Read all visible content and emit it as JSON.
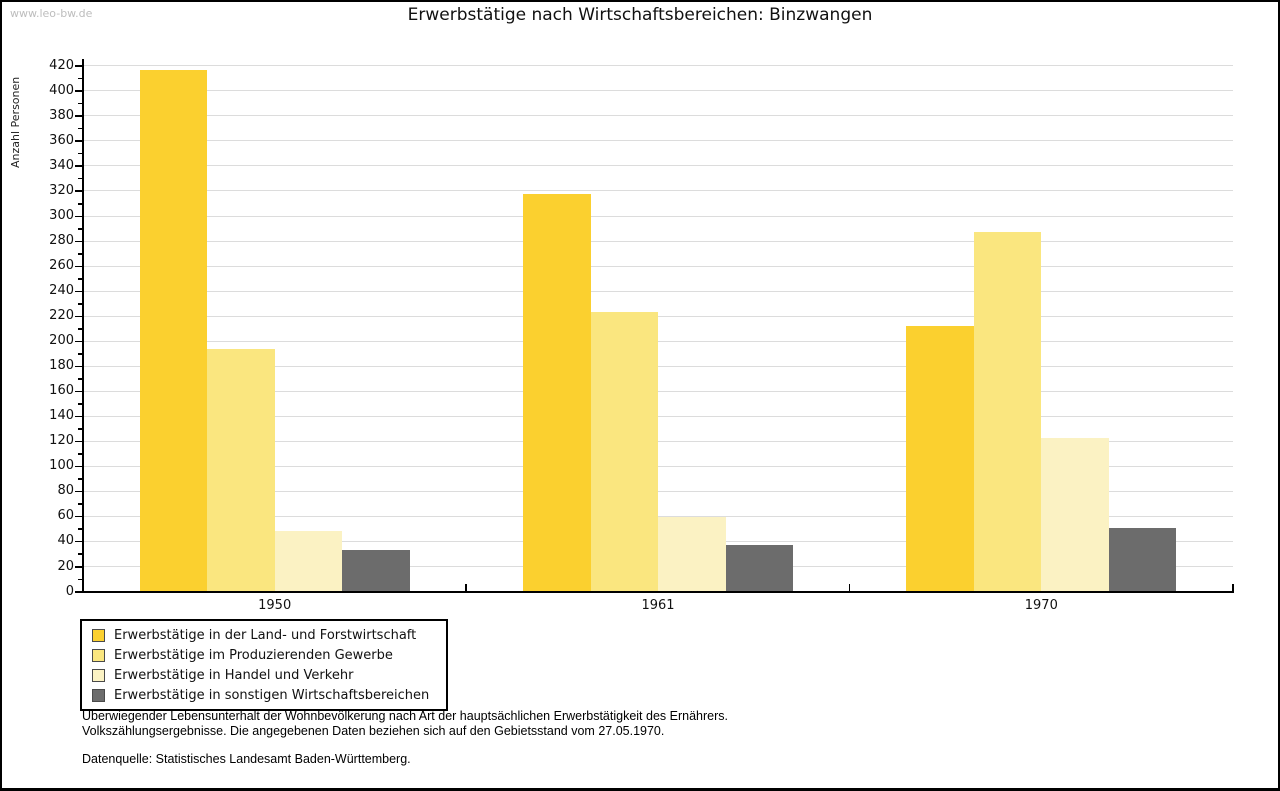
{
  "watermark": "www.leo-bw.de",
  "title": "Erwerbstätige nach Wirtschaftsbereichen: Binzwangen",
  "chart_data": {
    "type": "bar",
    "title": "Erwerbstätige nach Wirtschaftsbereichen: Binzwangen",
    "xlabel": "",
    "ylabel": "Anzahl Personen",
    "categories": [
      "1950",
      "1961",
      "1970"
    ],
    "series": [
      {
        "name": "Erwerbstätige in der Land- und Forstwirtschaft",
        "color": "#fbd02f",
        "values": [
          416,
          317,
          212
        ]
      },
      {
        "name": "Erwerbstätige im Produzierenden Gewerbe",
        "color": "#fae67f",
        "values": [
          193,
          223,
          287
        ]
      },
      {
        "name": "Erwerbstätige in Handel und Verkehr",
        "color": "#fbf2c3",
        "values": [
          48,
          59,
          122
        ]
      },
      {
        "name": "Erwerbstätige in sonstigen Wirtschaftsbereichen",
        "color": "#6c6c6c",
        "values": [
          33,
          37,
          50
        ]
      }
    ],
    "ylim": [
      0,
      425
    ],
    "yticks": [
      0,
      20,
      40,
      60,
      80,
      100,
      120,
      140,
      160,
      180,
      200,
      220,
      240,
      260,
      280,
      300,
      320,
      340,
      360,
      380,
      400,
      420
    ],
    "ytick_minor_step": 10,
    "grid": true,
    "gridline_color": "#dcdcdc",
    "legend_position": "bottom-left"
  },
  "footer": {
    "note_line1": "Überwiegender Lebensunterhalt der Wohnbevölkerung nach Art der hauptsächlichen Erwerbstätigkeit des Ernährers.",
    "note_line2": "Volkszählungsergebnisse. Die angegebenen Daten beziehen sich auf den Gebietsstand vom 27.05.1970.",
    "source": "Datenquelle: Statistisches Landesamt Baden-Württemberg."
  }
}
